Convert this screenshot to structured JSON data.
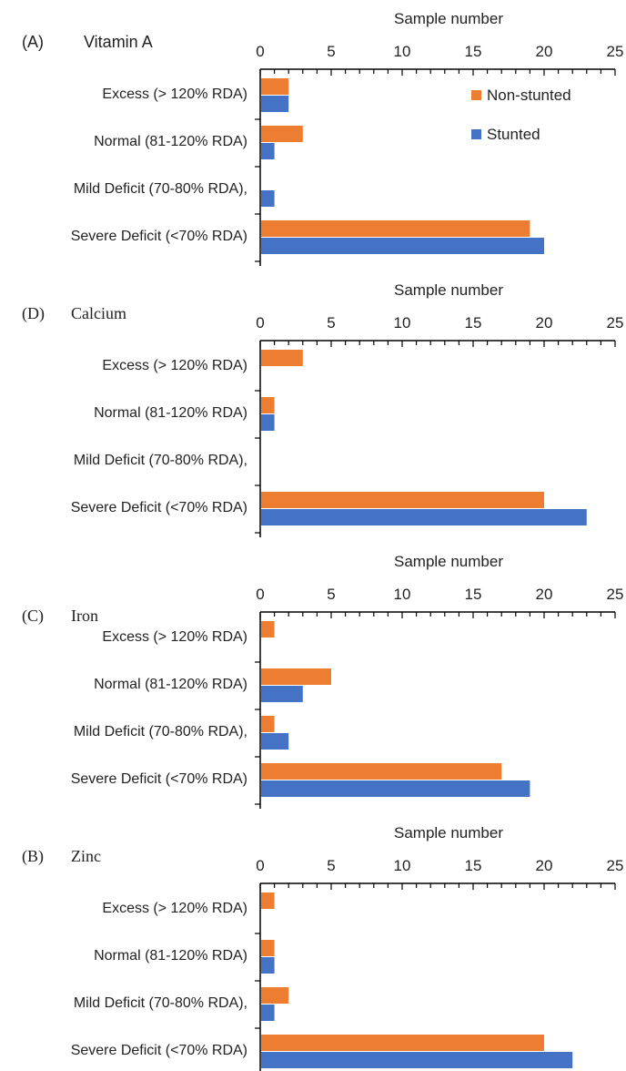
{
  "colors": {
    "non_stunted": "#ED7D31",
    "stunted": "#4472C4",
    "axis": "#000000",
    "text": "#222222"
  },
  "chart_data": [
    {
      "type": "bar",
      "orientation": "horizontal",
      "panel_label": "(A)",
      "title": "Vitamin A",
      "xlabel": "Sample number",
      "xlim": [
        0,
        25
      ],
      "xticks": [
        "0",
        "5",
        "10",
        "15",
        "20",
        "25"
      ],
      "x_axis_position": "top",
      "categories": [
        "Excess (> 120% RDA)",
        "Normal (81-120% RDA)",
        "Mild Deficit (70-80% RDA),",
        "Severe Deficit (<70% RDA)"
      ],
      "series": [
        {
          "name": "Non-stunted",
          "values": [
            2,
            3,
            0,
            19
          ]
        },
        {
          "name": "Stunted",
          "values": [
            2,
            1,
            1,
            20
          ]
        }
      ],
      "legend": [
        "Non-stunted",
        "Stunted"
      ],
      "legend_position": "top-right",
      "grid": false
    },
    {
      "type": "bar",
      "orientation": "horizontal",
      "panel_label": "(D)",
      "title": "Calcium",
      "xlabel": "Sample number",
      "xlim": [
        0,
        25
      ],
      "xticks": [
        "0",
        "5",
        "10",
        "15",
        "20",
        "25"
      ],
      "x_axis_position": "top",
      "categories": [
        "Excess (> 120% RDA)",
        "Normal (81-120% RDA)",
        "Mild Deficit (70-80% RDA),",
        "Severe Deficit (<70% RDA)"
      ],
      "series": [
        {
          "name": "Non-stunted",
          "values": [
            3,
            1,
            0,
            20
          ]
        },
        {
          "name": "Stunted",
          "values": [
            0,
            1,
            0,
            23
          ]
        }
      ],
      "grid": false
    },
    {
      "type": "bar",
      "orientation": "horizontal",
      "panel_label": "(C)",
      "title": "Iron",
      "xlabel": "Sample number",
      "xlim": [
        0,
        25
      ],
      "xticks": [
        "0",
        "5",
        "10",
        "15",
        "20",
        "25"
      ],
      "x_axis_position": "top",
      "categories": [
        "Excess (> 120% RDA)",
        "Normal (81-120% RDA)",
        "Mild Deficit (70-80% RDA),",
        "Severe Deficit (<70% RDA)"
      ],
      "series": [
        {
          "name": "Non-stunted",
          "values": [
            1,
            5,
            1,
            17
          ]
        },
        {
          "name": "Stunted",
          "values": [
            0,
            3,
            2,
            19
          ]
        }
      ],
      "grid": false
    },
    {
      "type": "bar",
      "orientation": "horizontal",
      "panel_label": "(B)",
      "title": "Zinc",
      "xlabel": "Sample number",
      "xlim": [
        0,
        25
      ],
      "xticks": [
        "0",
        "5",
        "10",
        "15",
        "20",
        "25"
      ],
      "x_axis_position": "top",
      "categories": [
        "Excess (> 120% RDA)",
        "Normal (81-120% RDA)",
        "Mild Deficit (70-80% RDA),",
        "Severe Deficit (<70% RDA)"
      ],
      "series": [
        {
          "name": "Non-stunted",
          "values": [
            1,
            1,
            2,
            20
          ]
        },
        {
          "name": "Stunted",
          "values": [
            0,
            1,
            1,
            22
          ]
        }
      ],
      "grid": false
    }
  ]
}
